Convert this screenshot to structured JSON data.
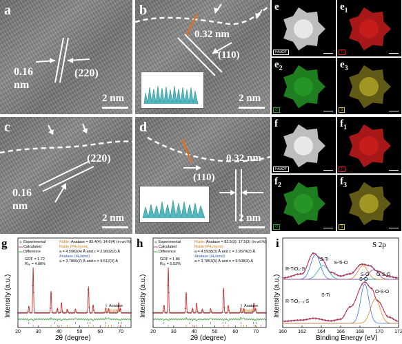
{
  "panel_a": {
    "letter": "a",
    "spacing": "0.16\nnm",
    "spacing_l1": "0.16",
    "spacing_l2": "nm",
    "plane": "(220)",
    "scale": "2 nm"
  },
  "panel_b": {
    "letter": "b",
    "spacing": "0.32 nm",
    "plane": "(110)",
    "scale": "2 nm"
  },
  "panel_c": {
    "letter": "c",
    "spacing_l1": "0.16",
    "spacing_l2": "nm",
    "plane": "(220)",
    "scale": "2 nm"
  },
  "panel_d": {
    "letter": "d",
    "spacing": "0.32 nm",
    "plane": "(110)",
    "scale": "2 nm"
  },
  "panel_e": {
    "letters": [
      "e",
      "e",
      "e",
      "e"
    ],
    "subs": [
      "",
      "1",
      "2",
      "3"
    ],
    "tags": [
      "HAADF",
      "Ti",
      "O",
      "S"
    ],
    "colors": [
      "#ffffff",
      "#e02020",
      "#2aa82a",
      "#d8c830"
    ]
  },
  "panel_f": {
    "letters": [
      "f",
      "f",
      "f",
      "f"
    ],
    "subs": [
      "",
      "1",
      "2",
      "3"
    ],
    "tags": [
      "HAADF",
      "Ti",
      "O",
      "S"
    ],
    "colors": [
      "#ffffff",
      "#e02020",
      "#2aa82a",
      "#d8c830"
    ]
  },
  "panel_g": {
    "letter": "g",
    "legend": [
      "Experimental",
      "Calculated",
      "Difference"
    ],
    "phase1_name": "Rutile",
    "phase1_text": ": Anatase = 85.4(4): 14.6(4) (in wt.%)",
    "line2": "Rutile (P4₂/mnm)",
    "line3": "a = 4.5982(4) Å and c = 2.9602(2) Å",
    "line4": "Anatase (I4₁/amd)",
    "line5": "a = 3.7800(7) Å and c = 9.512(3) Å",
    "gof": "GOF = 1.72",
    "rwp": "Rᵥₚ = 4.88%",
    "tick_legend": [
      "Anatase",
      "Rutile"
    ],
    "xlabel": "2θ (degree)",
    "ylabel": "Intensity (a.u.)",
    "xticks": [
      "20",
      "30",
      "40",
      "50",
      "60",
      "70"
    ]
  },
  "panel_h": {
    "letter": "h",
    "legend": [
      "Experimental",
      "Calculated",
      "Difference"
    ],
    "phase1_name": "Rutile",
    "phase1_text": ": Anatase = 82.5(3): 17.5(3) (in wt.%)",
    "line2": "Rutile (P4₂/mnm)",
    "line3": "a = 4.5938(3) Å and c = 2.9579(2) Å",
    "line4": "Anatase (I4₁/amd)",
    "line5": "a = 3.7853(6) Å and c = 9.508(3) Å",
    "gof": "GOF = 1.86",
    "rwp": "Rᵥₚ = 5.53%",
    "tick_legend": [
      "Anatase",
      "Rutile"
    ],
    "xlabel": "2θ (degree)",
    "ylabel": "Intensity (a.u.)",
    "xticks": [
      "20",
      "30",
      "40",
      "50",
      "60",
      "70"
    ]
  },
  "panel_i": {
    "letter": "i",
    "title": "S 2p",
    "sample1": "R-TiO₂-S",
    "sample2": "R-TiO₂₋ₓ-S",
    "peaks_top": [
      "S-Ti",
      "S-Ti-O",
      "S-O",
      "O-S-O"
    ],
    "peaks_bottom": [
      "S-Ti",
      "S-O",
      "O-S-O"
    ],
    "xlabel": "Binding Energy (eV)",
    "ylabel": "Intensity (a.u.)",
    "xticks": [
      "160",
      "162",
      "164",
      "166",
      "168",
      "170",
      "172"
    ]
  },
  "chart_data": [
    {
      "type": "line",
      "title": "",
      "xlabel": "2θ (degree)",
      "ylabel": "Intensity (a.u.)",
      "xlim": [
        20,
        75
      ],
      "series": [
        {
          "name": "Experimental",
          "x": [
            27.4,
            36.1,
            39.2,
            41.2,
            44.0,
            54.3,
            56.6,
            62.7,
            64.0,
            69.0,
            69.8,
            25.3,
            48.0
          ],
          "y": [
            100,
            48,
            10,
            22,
            8,
            58,
            18,
            10,
            9,
            22,
            10,
            14,
            8
          ]
        },
        {
          "name": "Calculated",
          "x": [
            27.4,
            36.1,
            39.2,
            41.2,
            44.0,
            54.3,
            56.6,
            62.7,
            64.0,
            69.0,
            69.8,
            25.3,
            48.0
          ],
          "y": [
            100,
            48,
            10,
            22,
            8,
            58,
            18,
            10,
            9,
            22,
            10,
            14,
            8
          ]
        },
        {
          "name": "Anatase",
          "x": [
            25.3,
            37.8,
            48.0,
            53.9,
            55.1,
            62.7,
            68.8,
            70.3,
            75.0
          ]
        },
        {
          "name": "Rutile",
          "x": [
            27.4,
            36.1,
            39.2,
            41.2,
            44.0,
            54.3,
            56.6,
            62.7,
            64.0,
            65.5,
            69.0,
            69.8,
            72.4
          ]
        }
      ]
    },
    {
      "type": "line",
      "title": "",
      "xlabel": "2θ (degree)",
      "ylabel": "Intensity (a.u.)",
      "xlim": [
        20,
        75
      ],
      "series": [
        {
          "name": "Experimental",
          "x": [
            27.4,
            36.1,
            39.2,
            41.2,
            44.0,
            54.3,
            56.6,
            62.7,
            64.0,
            69.0,
            69.8,
            25.3,
            48.0
          ],
          "y": [
            100,
            46,
            10,
            21,
            8,
            55,
            17,
            10,
            9,
            21,
            10,
            17,
            9
          ]
        },
        {
          "name": "Calculated",
          "x": [
            27.4,
            36.1,
            39.2,
            41.2,
            44.0,
            54.3,
            56.6,
            62.7,
            64.0,
            69.0,
            69.8,
            25.3,
            48.0
          ],
          "y": [
            100,
            46,
            10,
            21,
            8,
            55,
            17,
            10,
            9,
            21,
            10,
            17,
            9
          ]
        },
        {
          "name": "Anatase",
          "x": [
            25.3,
            37.8,
            48.0,
            53.9,
            55.1,
            62.7,
            68.8,
            70.3,
            75.0
          ]
        },
        {
          "name": "Rutile",
          "x": [
            27.4,
            36.1,
            39.2,
            41.2,
            44.0,
            54.3,
            56.6,
            62.7,
            64.0,
            65.5,
            69.0,
            69.8,
            72.4
          ]
        }
      ]
    },
    {
      "type": "line",
      "title": "S 2p",
      "xlabel": "Binding Energy (eV)",
      "ylabel": "Intensity (a.u.)",
      "xlim": [
        160,
        172
      ],
      "series": [
        {
          "name": "R-TiO₂-S",
          "x": [
            160,
            162,
            163.2,
            164.0,
            165,
            166,
            167,
            168.2,
            169,
            169.8,
            171,
            172
          ],
          "y": [
            0.05,
            0.2,
            0.95,
            0.75,
            0.25,
            0.12,
            0.2,
            0.55,
            0.5,
            0.3,
            0.1,
            0.05
          ]
        },
        {
          "name": "R-TiO₂₋ₓ-S",
          "x": [
            160,
            162,
            163.2,
            165,
            166,
            167,
            168.5,
            169.2,
            169.8,
            171,
            172
          ],
          "y": [
            0.05,
            0.08,
            0.12,
            0.06,
            0.1,
            0.4,
            1.0,
            0.85,
            0.55,
            0.15,
            0.05
          ]
        }
      ]
    }
  ]
}
